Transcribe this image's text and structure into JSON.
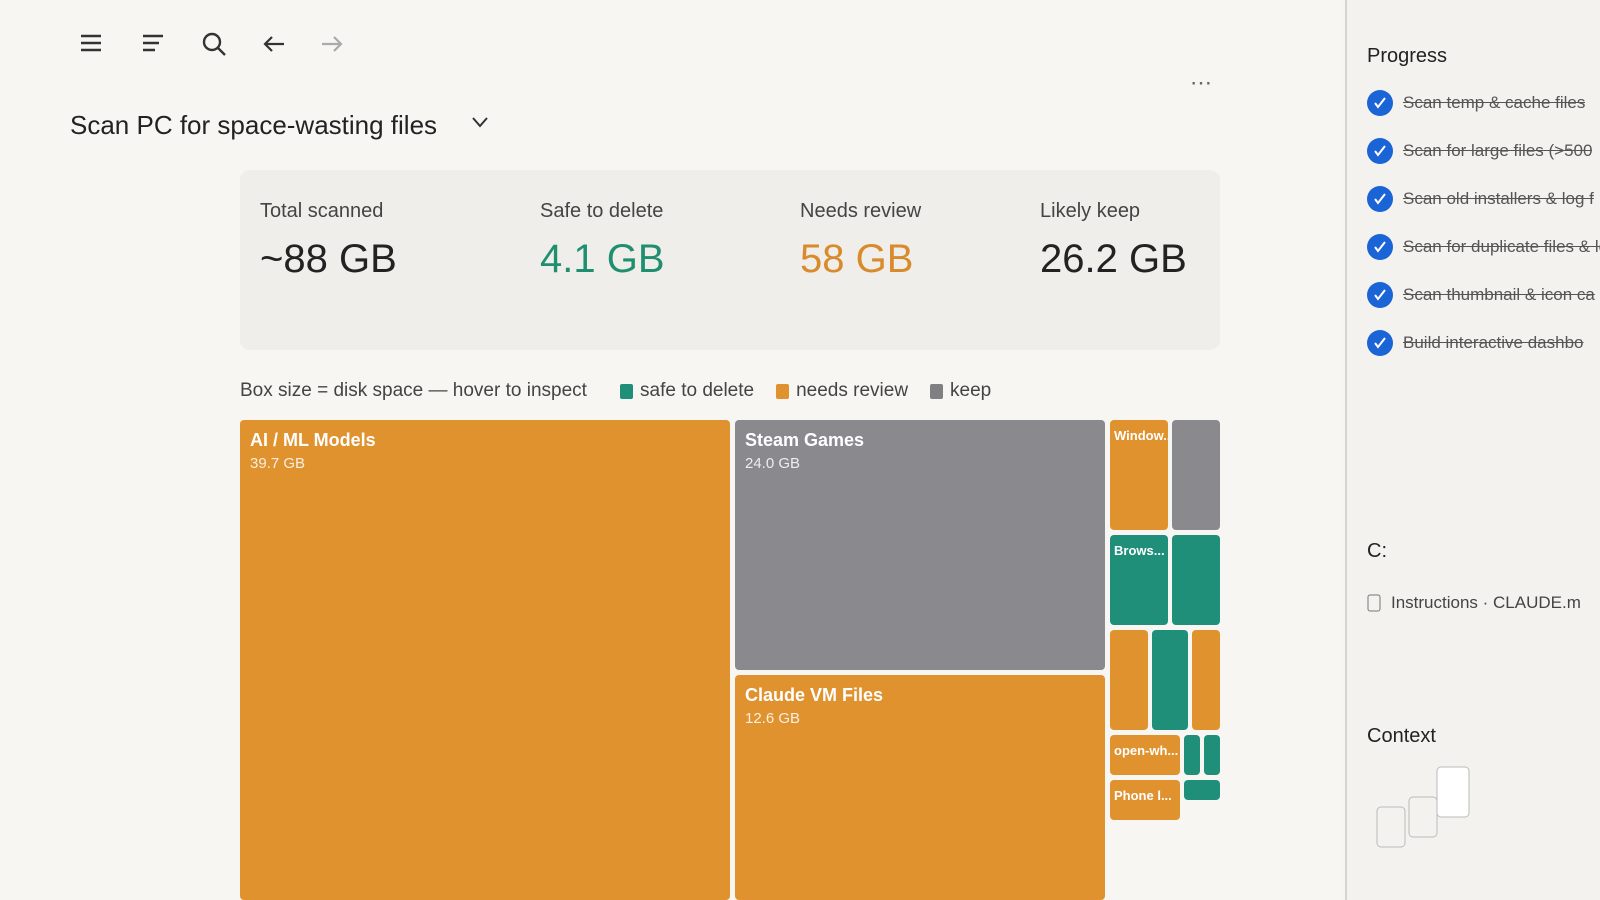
{
  "header": {
    "title": "Scan PC for space-wasting files"
  },
  "stats": [
    {
      "label": "Total scanned",
      "value": "~88 GB",
      "color": "#222222"
    },
    {
      "label": "Safe to delete",
      "value": "4.1 GB",
      "color": "#1f8f6f"
    },
    {
      "label": "Needs review",
      "value": "58 GB",
      "color": "#d98a2b"
    },
    {
      "label": "Likely keep",
      "value": "26.2 GB",
      "color": "#222222"
    }
  ],
  "treemap": {
    "caption": "Box size = disk space — hover to inspect",
    "legend": [
      {
        "label": "safe to delete",
        "color": "#1f8f7a"
      },
      {
        "label": "needs review",
        "color": "#e0922f"
      },
      {
        "label": "keep",
        "color": "#7f7f84"
      }
    ],
    "tiles": [
      {
        "label": "AI / ML Models",
        "size": "39.7 GB",
        "color": "#e0922f"
      },
      {
        "label": "Steam Games",
        "size": "24.0 GB",
        "color": "#8a8a8e"
      },
      {
        "label": "Claude VM Files",
        "size": "12.6 GB",
        "color": "#e0922f"
      },
      {
        "label": "Window...",
        "color": "#e0922f"
      },
      {
        "color": "#8a8a8e"
      },
      {
        "label": "Brows...",
        "color": "#1f8f7a"
      },
      {
        "color": "#1f8f7a"
      },
      {
        "color": "#e0922f"
      },
      {
        "color": "#1f8f7a"
      },
      {
        "color": "#e0922f"
      },
      {
        "label": "open-wh...",
        "color": "#e0922f"
      },
      {
        "color": "#1f8f7a"
      },
      {
        "color": "#1f8f7a"
      },
      {
        "label": "Phone l...",
        "color": "#e0922f"
      },
      {
        "color": "#1f8f7a"
      }
    ]
  },
  "progress": {
    "title": "Progress",
    "items": [
      "Scan temp & cache files",
      "Scan for large files (>500",
      "Scan old installers & log f",
      "Scan for duplicate files & leftover software folders",
      "Scan thumbnail & icon ca",
      "Build interactive dashbo"
    ]
  },
  "files": {
    "title": "C:",
    "items": [
      "Instructions · CLAUDE.m"
    ]
  },
  "context": {
    "title": "Context"
  }
}
